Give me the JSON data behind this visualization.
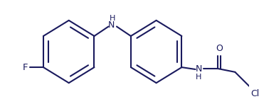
{
  "background": "#ffffff",
  "line_color": "#1a1a5e",
  "text_color": "#1a1a5e",
  "line_width": 1.5,
  "font_size": 8.5,
  "fig_width": 3.64,
  "fig_height": 1.47,
  "dpi": 100,
  "F_label": "F",
  "N_label": "N",
  "H_label": "H",
  "O_label": "O",
  "Cl_label": "Cl"
}
